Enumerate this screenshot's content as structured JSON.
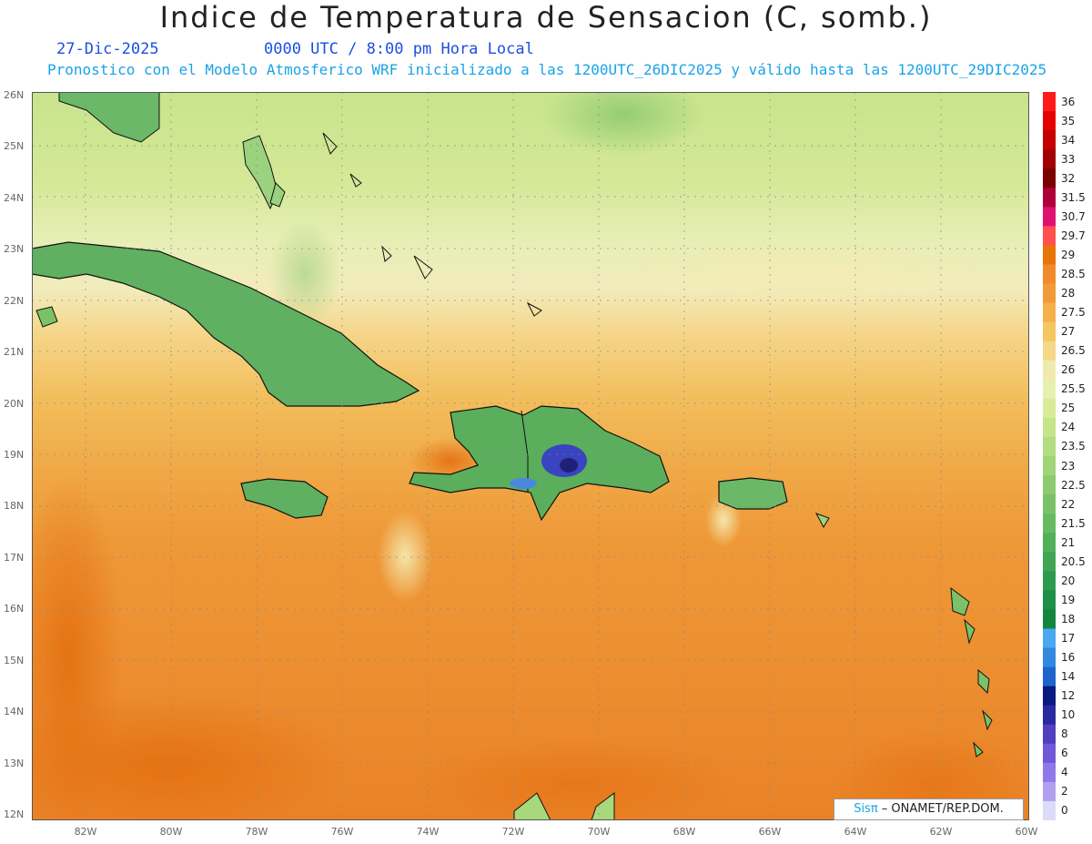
{
  "title": "Indice de Temperatura de Sensacion (C, somb.)",
  "date": "27-Dic-2025",
  "time_text": "0000 UTC / 8:00 pm Hora Local",
  "model_text": "Pronostico con el Modelo Atmosferico WRF inicializado a las 1200UTC_26DIC2025 y válido hasta las  1200UTC_29DIC2025",
  "lat_labels": [
    "26N",
    "25N",
    "24N",
    "23N",
    "22N",
    "21N",
    "20N",
    "19N",
    "18N",
    "17N",
    "16N",
    "15N",
    "14N",
    "13N",
    "12N"
  ],
  "lon_labels": [
    "82W",
    "80W",
    "78W",
    "76W",
    "74W",
    "72W",
    "70W",
    "68W",
    "66W",
    "64W",
    "62W",
    "60W"
  ],
  "colorbar": {
    "labels": [
      "36",
      "35",
      "34",
      "33",
      "32",
      "31.5",
      "30.7",
      "29.7",
      "29",
      "28.5",
      "28",
      "27.5",
      "27",
      "26.5",
      "26",
      "25.5",
      "25",
      "24",
      "23.5",
      "23",
      "22.5",
      "22",
      "21.5",
      "21",
      "20.5",
      "20",
      "19",
      "18",
      "17",
      "16",
      "14",
      "12",
      "10",
      "8",
      "6",
      "4",
      "2",
      "0"
    ],
    "colors": [
      "#ff1a1a",
      "#e60000",
      "#c40000",
      "#a30000",
      "#7a0000",
      "#b0003a",
      "#e01070",
      "#ff5050",
      "#e8740a",
      "#f08a2a",
      "#f29a38",
      "#f4b04a",
      "#f6c660",
      "#f4d888",
      "#f0eab0",
      "#e8f0b0",
      "#d8ec98",
      "#c6e488",
      "#b4dc80",
      "#a2d478",
      "#8ecb70",
      "#7ac268",
      "#66ba62",
      "#52b05a",
      "#40a654",
      "#2e9a4e",
      "#209048",
      "#158440",
      "#4aa8f0",
      "#3288e0",
      "#1e64cc",
      "#0a1a80",
      "#2a2aa0",
      "#5040c0",
      "#7058d8",
      "#9078e8",
      "#b0a0f0",
      "#dcdcf8"
    ]
  },
  "credit": {
    "brand": "Sisπ",
    "text": " – ONAMET/REP.DOM."
  }
}
